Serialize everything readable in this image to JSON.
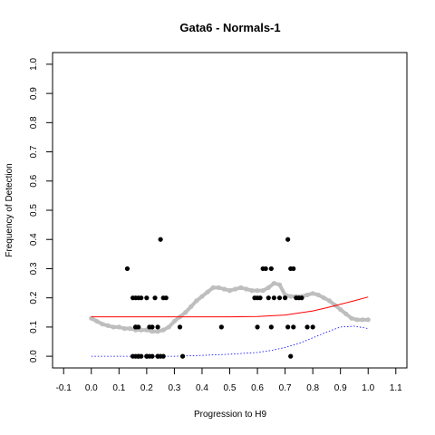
{
  "chart_data": {
    "type": "scatter",
    "title": "Gata6 - Normals-1",
    "xlabel": "Progression to H9",
    "ylabel": "Frequency of Detection",
    "xlim": [
      -0.14,
      1.14
    ],
    "ylim": [
      -0.04,
      1.04
    ],
    "x_ticks": [
      "-0.1",
      "0.0",
      "0.1",
      "0.2",
      "0.3",
      "0.4",
      "0.5",
      "0.6",
      "0.7",
      "0.8",
      "0.9",
      "1.0",
      "1.1"
    ],
    "y_ticks": [
      "0.0",
      "0.1",
      "0.2",
      "0.3",
      "0.4",
      "0.5",
      "0.6",
      "0.7",
      "0.8",
      "0.9",
      "1.0"
    ],
    "grid": false,
    "legend": "none",
    "colors": {
      "points": "#000000",
      "smooth": "#bebebe",
      "fit": "#ff0000",
      "baseline": "#0000ff"
    },
    "series": [
      {
        "style": "points",
        "x": [
          0.13,
          0.15,
          0.16,
          0.16,
          0.17,
          0.17,
          0.18,
          0.2,
          0.21,
          0.22,
          0.23,
          0.24,
          0.25,
          0.26,
          0.27,
          0.15,
          0.16,
          0.17,
          0.2,
          0.21,
          0.24,
          0.26,
          0.16,
          0.17,
          0.18,
          0.2,
          0.22,
          0.24,
          0.25,
          0.32,
          0.33,
          0.47,
          0.59,
          0.6,
          0.61,
          0.62,
          0.63,
          0.64,
          0.65,
          0.66,
          0.68,
          0.7,
          0.71,
          0.72,
          0.73,
          0.74,
          0.75,
          0.76,
          0.78,
          0.8,
          0.6,
          0.65,
          0.71,
          0.73,
          0.72
        ],
        "y": [
          0.3,
          0.2,
          0.2,
          0.1,
          0.1,
          0.2,
          0.2,
          0.2,
          0.1,
          0.1,
          0.2,
          0.1,
          0.4,
          0.2,
          0.2,
          0.0,
          0.0,
          0.0,
          0.0,
          0.0,
          0.0,
          0.0,
          0.1,
          0.0,
          0.0,
          0.0,
          0.0,
          0.0,
          0.0,
          0.1,
          0.0,
          0.1,
          0.2,
          0.2,
          0.2,
          0.3,
          0.3,
          0.2,
          0.1,
          0.2,
          0.2,
          0.2,
          0.4,
          0.3,
          0.3,
          0.2,
          0.2,
          0.2,
          0.1,
          0.1,
          0.1,
          0.3,
          0.1,
          0.1,
          0.0
        ]
      },
      {
        "style": "smooth",
        "x": [
          0.0,
          0.02,
          0.04,
          0.06,
          0.08,
          0.1,
          0.12,
          0.14,
          0.16,
          0.18,
          0.2,
          0.22,
          0.24,
          0.26,
          0.28,
          0.3,
          0.32,
          0.34,
          0.36,
          0.38,
          0.4,
          0.42,
          0.44,
          0.46,
          0.48,
          0.5,
          0.52,
          0.54,
          0.56,
          0.58,
          0.6,
          0.62,
          0.64,
          0.66,
          0.68,
          0.7,
          0.72,
          0.74,
          0.76,
          0.78,
          0.8,
          0.82,
          0.84,
          0.86,
          0.88,
          0.9,
          0.92,
          0.94,
          0.96,
          0.98,
          1.0
        ],
        "y": [
          0.13,
          0.12,
          0.11,
          0.105,
          0.1,
          0.1,
          0.095,
          0.095,
          0.09,
          0.09,
          0.09,
          0.085,
          0.085,
          0.09,
          0.1,
          0.12,
          0.135,
          0.15,
          0.17,
          0.19,
          0.205,
          0.22,
          0.235,
          0.235,
          0.23,
          0.225,
          0.23,
          0.235,
          0.23,
          0.225,
          0.225,
          0.225,
          0.235,
          0.25,
          0.245,
          0.21,
          0.205,
          0.205,
          0.205,
          0.21,
          0.215,
          0.21,
          0.2,
          0.19,
          0.175,
          0.16,
          0.145,
          0.13,
          0.125,
          0.125,
          0.125
        ]
      },
      {
        "style": "fit",
        "x": [
          0.0,
          0.1,
          0.2,
          0.3,
          0.4,
          0.5,
          0.6,
          0.7,
          0.8,
          0.85,
          0.9,
          0.95,
          1.0
        ],
        "y": [
          0.135,
          0.135,
          0.135,
          0.135,
          0.135,
          0.135,
          0.136,
          0.141,
          0.155,
          0.166,
          0.178,
          0.19,
          0.203
        ]
      },
      {
        "style": "baseline",
        "x": [
          0.0,
          0.1,
          0.2,
          0.3,
          0.4,
          0.5,
          0.6,
          0.65,
          0.7,
          0.75,
          0.8,
          0.85,
          0.9,
          0.95,
          1.0
        ],
        "y": [
          0.0,
          0.0,
          0.0,
          0.0,
          0.003,
          0.007,
          0.013,
          0.02,
          0.03,
          0.044,
          0.063,
          0.083,
          0.1,
          0.103,
          0.095
        ]
      }
    ]
  }
}
